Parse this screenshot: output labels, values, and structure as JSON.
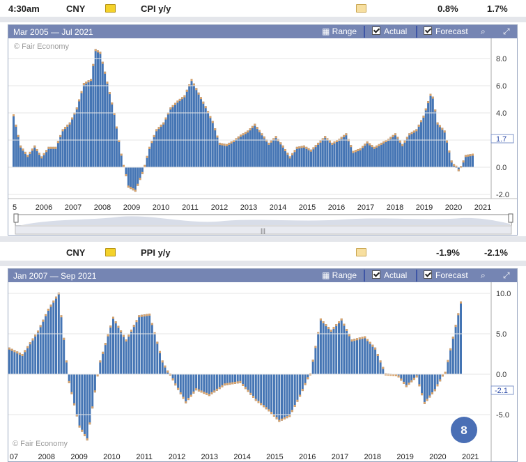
{
  "colors": {
    "bar": "#4575b4",
    "forecast": "#d9a36a",
    "header": "#7585b3",
    "grid": "#e6e6e6"
  },
  "cpi": {
    "time": "4:30am",
    "currency": "CNY",
    "indicator": "CPI y/y",
    "actual": "0.8%",
    "forecast": "1.7%",
    "period": "Mar 2005 — Jul 2021",
    "watermark": "© Fair Economy",
    "range_label": "Range",
    "actual_label": "Actual",
    "forecast_label": "Forecast",
    "x_labels": [
      "5",
      "2006",
      "2007",
      "2008",
      "2009",
      "2010",
      "2011",
      "2012",
      "2013",
      "2014",
      "2015",
      "2016",
      "2017",
      "2018",
      "2019",
      "2020",
      "2021"
    ],
    "y_labels": [
      "8.0",
      "6.0",
      "4.0",
      "2.0",
      "0.0",
      "-2.0"
    ],
    "current_marker": "1.7",
    "scroll_grip": "|||"
  },
  "ppi": {
    "currency": "CNY",
    "indicator": "PPI y/y",
    "actual": "-1.9%",
    "forecast": "-2.1%",
    "period": "Jan 2007 — Sep 2021",
    "watermark": "© Fair Economy",
    "range_label": "Range",
    "actual_label": "Actual",
    "forecast_label": "Forecast",
    "x_labels": [
      "07",
      "2008",
      "2009",
      "2010",
      "2011",
      "2012",
      "2013",
      "2014",
      "2015",
      "2016",
      "2017",
      "2018",
      "2019",
      "2020",
      "2021"
    ],
    "y_labels": [
      "10.0",
      "5.0",
      "0.0",
      "-5.0"
    ],
    "current_marker": "-2.1",
    "page_badge": "8"
  },
  "chart_data": [
    {
      "type": "bar",
      "title": "CPI y/y",
      "ylim": [
        -3,
        9
      ],
      "x": [
        "2005-03",
        "2005-06",
        "2005-09",
        "2005-12",
        "2006-03",
        "2006-06",
        "2006-09",
        "2006-12",
        "2007-03",
        "2007-06",
        "2007-09",
        "2007-12",
        "2008-02",
        "2008-04",
        "2008-07",
        "2008-10",
        "2009-01",
        "2009-04",
        "2009-07",
        "2009-10",
        "2010-01",
        "2010-04",
        "2010-07",
        "2010-10",
        "2011-01",
        "2011-04",
        "2011-07",
        "2011-10",
        "2012-01",
        "2012-04",
        "2012-07",
        "2012-10",
        "2013-01",
        "2013-04",
        "2013-07",
        "2013-10",
        "2014-01",
        "2014-04",
        "2014-07",
        "2014-10",
        "2015-01",
        "2015-04",
        "2015-07",
        "2015-10",
        "2016-01",
        "2016-04",
        "2016-07",
        "2016-10",
        "2017-01",
        "2017-04",
        "2017-07",
        "2017-10",
        "2018-01",
        "2018-04",
        "2018-07",
        "2018-10",
        "2019-01",
        "2019-04",
        "2019-07",
        "2019-10",
        "2020-01",
        "2020-02",
        "2020-04",
        "2020-07",
        "2020-10",
        "2021-01",
        "2021-04",
        "2021-07"
      ],
      "values": [
        3.9,
        1.6,
        0.9,
        1.6,
        0.8,
        1.5,
        1.5,
        2.8,
        3.3,
        4.4,
        6.2,
        6.5,
        8.7,
        8.5,
        6.3,
        4.0,
        1.0,
        -1.5,
        -1.8,
        -0.5,
        1.5,
        2.8,
        3.3,
        4.4,
        4.9,
        5.3,
        6.5,
        5.5,
        4.5,
        3.4,
        1.8,
        1.7,
        2.0,
        2.4,
        2.7,
        3.2,
        2.5,
        1.8,
        2.3,
        1.6,
        0.8,
        1.5,
        1.6,
        1.3,
        1.8,
        2.3,
        1.8,
        2.1,
        2.5,
        1.2,
        1.4,
        1.9,
        1.5,
        1.8,
        2.1,
        2.5,
        1.7,
        2.5,
        2.8,
        3.8,
        5.4,
        5.2,
        3.3,
        2.7,
        0.5,
        -0.3,
        0.9,
        1.0
      ]
    },
    {
      "type": "bar",
      "title": "PPI y/y",
      "ylim": [
        -10,
        12
      ],
      "x": [
        "2007-01",
        "2007-06",
        "2007-12",
        "2008-04",
        "2008-08",
        "2008-12",
        "2009-04",
        "2009-07",
        "2009-12",
        "2010-05",
        "2010-10",
        "2011-03",
        "2011-07",
        "2011-12",
        "2012-05",
        "2012-09",
        "2013-01",
        "2013-06",
        "2013-12",
        "2014-06",
        "2014-12",
        "2015-05",
        "2015-09",
        "2016-01",
        "2016-05",
        "2016-09",
        "2017-01",
        "2017-05",
        "2017-09",
        "2018-01",
        "2018-06",
        "2018-10",
        "2019-02",
        "2019-06",
        "2019-10",
        "2020-02",
        "2020-05",
        "2020-09",
        "2021-01",
        "2021-07"
      ],
      "values": [
        3.3,
        2.5,
        5.4,
        8.1,
        10.1,
        -1.1,
        -6.6,
        -8.2,
        1.7,
        7.1,
        4.3,
        7.3,
        7.5,
        1.7,
        -1.4,
        -3.6,
        -2.0,
        -2.7,
        -1.4,
        -1.1,
        -3.3,
        -4.6,
        -5.9,
        -5.3,
        -2.8,
        0.1,
        6.9,
        5.5,
        6.9,
        4.3,
        4.7,
        3.3,
        0.1,
        0.0,
        -1.6,
        -0.4,
        -3.7,
        -2.1,
        0.3,
        9.0
      ]
    }
  ]
}
